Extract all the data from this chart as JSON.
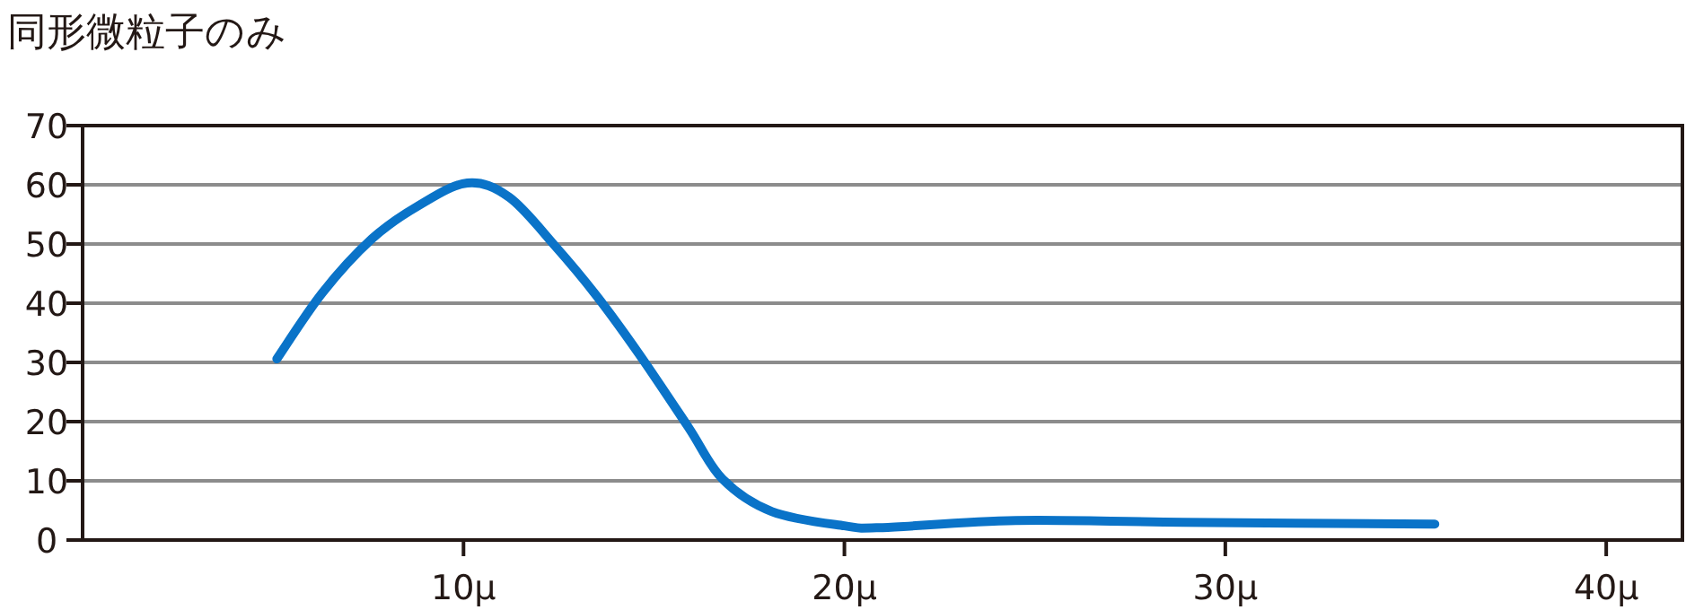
{
  "chart_data": {
    "type": "line",
    "title": "同形微粒子のみ",
    "x": [
      5.1,
      6.3,
      7.6,
      8.8,
      10.1,
      11.2,
      12.4,
      13.5,
      14.6,
      15.9,
      16.8,
      18.1,
      20.0,
      21.0,
      24.5,
      28.9,
      35.5
    ],
    "series": [
      {
        "color": "#0a73c8",
        "values": [
          30.6,
          41.8,
          50.9,
          56.4,
          60.3,
          57.9,
          49.7,
          41.2,
          31.5,
          19.1,
          10.3,
          4.8,
          2.4,
          2.1,
          3.3,
          3.0,
          2.7
        ]
      }
    ],
    "xlim": [
      0,
      42
    ],
    "xticks": [
      {
        "value": 10,
        "label": "10μ"
      },
      {
        "value": 20,
        "label": "20μ"
      },
      {
        "value": 30,
        "label": "30μ"
      },
      {
        "value": 40,
        "label": "40μ"
      }
    ],
    "ylim": [
      0,
      70
    ],
    "yticks": [
      0,
      10,
      20,
      30,
      40,
      50,
      60,
      70
    ],
    "grid": "y",
    "marker": "none",
    "line_style": "solid"
  }
}
